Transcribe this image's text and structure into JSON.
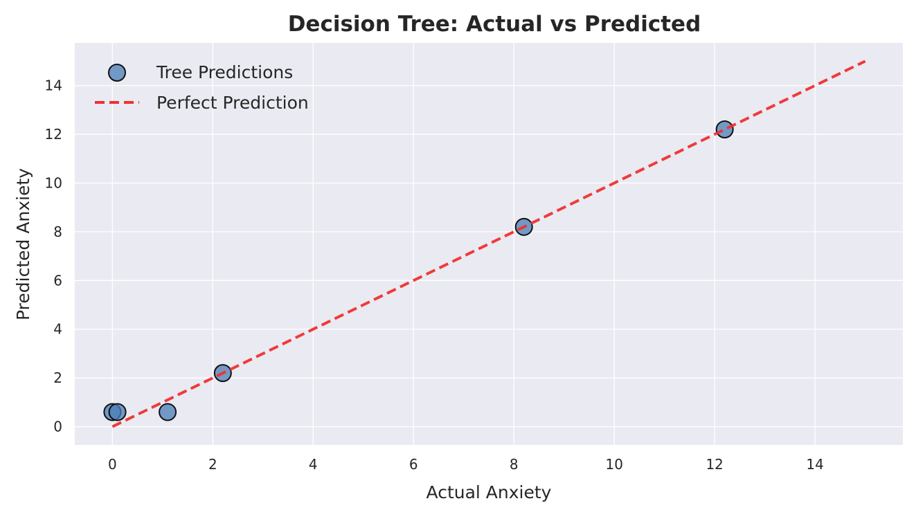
{
  "chart_data": {
    "type": "scatter",
    "title": "Decision Tree: Actual vs Predicted",
    "xlabel": "Actual Anxiety",
    "ylabel": "Predicted Anxiety",
    "xlim": [
      -0.75,
      15.75
    ],
    "ylim": [
      -0.75,
      15.75
    ],
    "xticks": [
      0,
      2,
      4,
      6,
      8,
      10,
      12,
      14
    ],
    "yticks": [
      0,
      2,
      4,
      6,
      8,
      10,
      12,
      14
    ],
    "grid": true,
    "legend_position": "upper-left",
    "series": [
      {
        "name": "Tree Predictions",
        "kind": "scatter",
        "color": "#4a7db5",
        "edge_color": "#111111",
        "points": [
          {
            "x": 0.0,
            "y": 0.6
          },
          {
            "x": 0.1,
            "y": 0.6
          },
          {
            "x": 1.1,
            "y": 0.6
          },
          {
            "x": 2.2,
            "y": 2.2
          },
          {
            "x": 8.2,
            "y": 8.2
          },
          {
            "x": 12.2,
            "y": 12.2
          }
        ]
      },
      {
        "name": "Perfect Prediction",
        "kind": "line",
        "style": "dashed",
        "color": "#f03030",
        "points": [
          {
            "x": 0,
            "y": 0
          },
          {
            "x": 15,
            "y": 15
          }
        ]
      }
    ],
    "colors": {
      "plot_background": "#eaeaf2",
      "grid": "#ffffff",
      "text": "#262626"
    }
  }
}
